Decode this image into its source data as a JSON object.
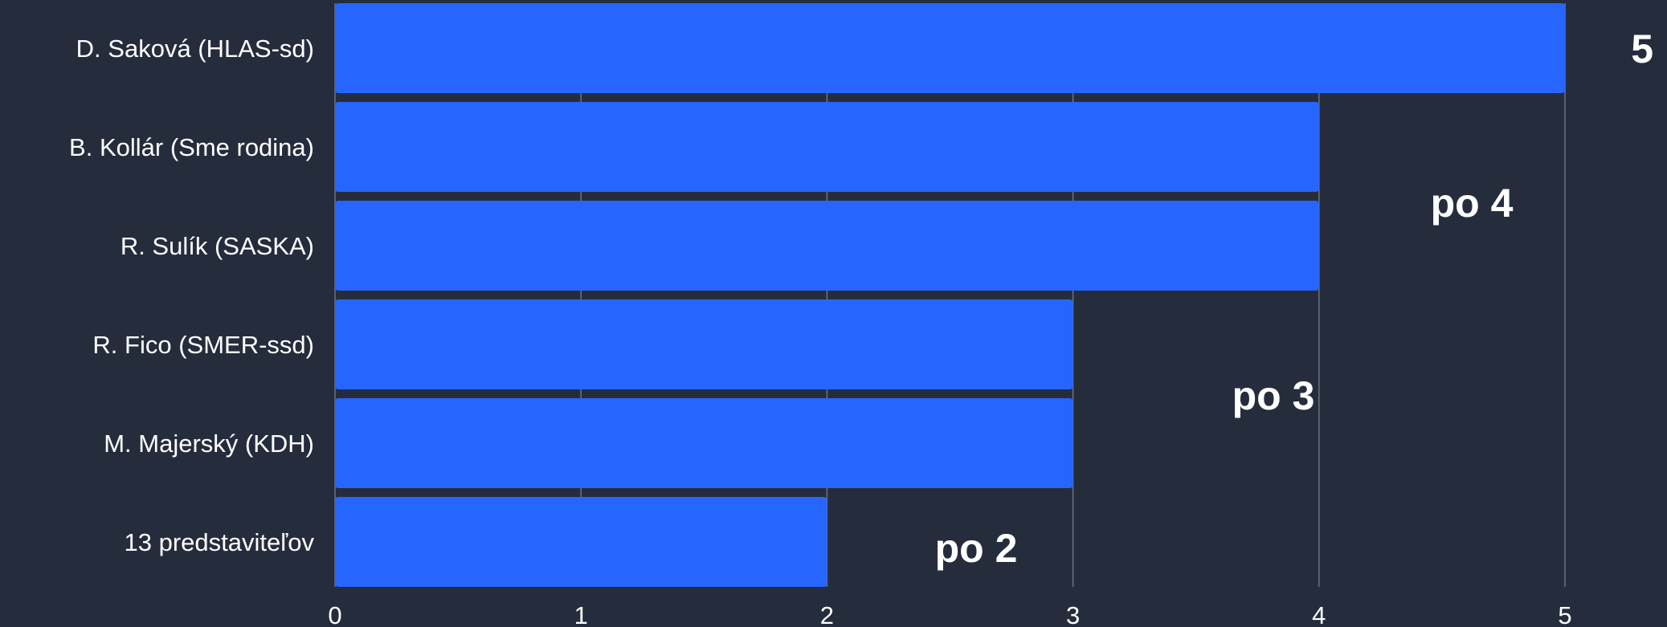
{
  "chart_data": {
    "type": "bar",
    "orientation": "horizontal",
    "categories": [
      "D. Saková (HLAS-sd)",
      "B. Kollár (Sme rodina)",
      "R. Sulík (SASKA)",
      "R. Fico (SMER-ssd)",
      "M. Majerský (KDH)",
      "13 predstaviteľov"
    ],
    "values": [
      5,
      4,
      4,
      3,
      3,
      2
    ],
    "xlim": [
      0,
      5
    ],
    "xticks": [
      "0",
      "1",
      "2",
      "3",
      "4",
      "5"
    ],
    "grid": true,
    "bar_color": "#2765ff",
    "background_color": "#252d3d",
    "annotations": [
      {
        "text": "5",
        "value": 5,
        "rows": [
          0
        ]
      },
      {
        "text": "po 4",
        "value": 4,
        "rows": [
          1,
          2
        ]
      },
      {
        "text": "po 3",
        "value": 3,
        "rows": [
          3,
          4
        ]
      },
      {
        "text": "po 2",
        "value": 2,
        "rows": [
          5
        ]
      }
    ]
  }
}
